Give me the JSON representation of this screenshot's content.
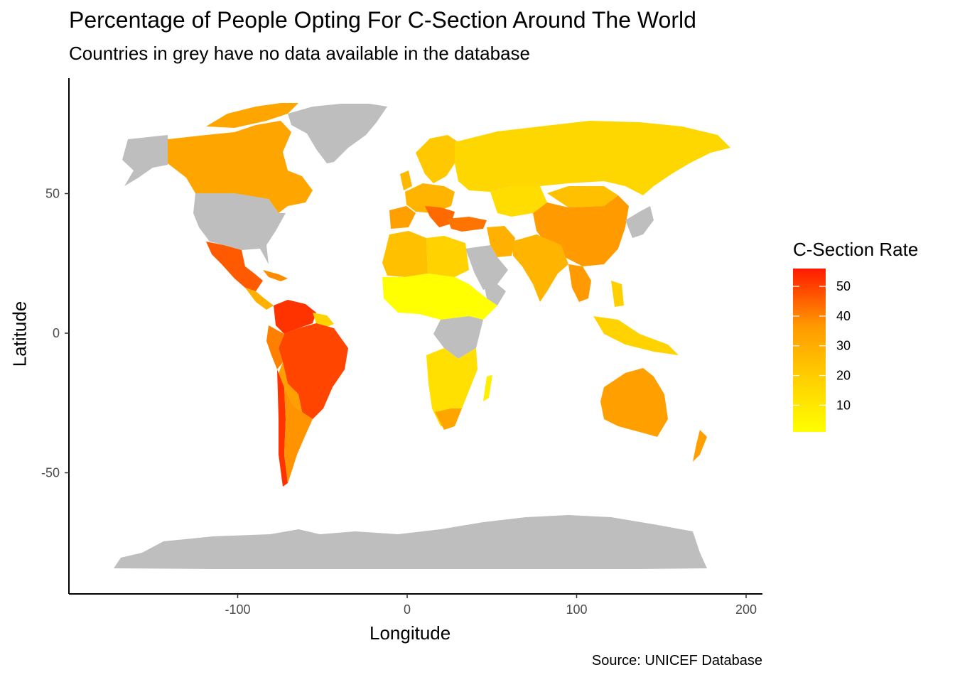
{
  "title": "Percentage of People Opting For C-Section Around The World",
  "subtitle": "Countries in grey have no data available in the database",
  "caption": "Source: UNICEF Database",
  "colors": {
    "no_data": "#bebebe",
    "scale_low": "#ffff00",
    "scale_high": "#ff1a00",
    "axis": "#000000"
  },
  "chart_data": {
    "type": "choropleth",
    "xlabel": "Longitude",
    "ylabel": "Latitude",
    "xlim": [
      -200,
      200
    ],
    "ylim": [
      -90,
      85
    ],
    "xticks": [
      "-100",
      "0",
      "100",
      "200"
    ],
    "yticks": [
      "50",
      "0",
      "-50"
    ],
    "legend": {
      "title": "C-Section Rate",
      "breaks": [
        "50",
        "40",
        "30",
        "20",
        "10"
      ],
      "range": [
        1,
        56
      ],
      "placement": "right"
    },
    "regions": [
      {
        "name": "Canada",
        "value": 26
      },
      {
        "name": "Mexico",
        "value": 45
      },
      {
        "name": "Brazil",
        "value": 55
      },
      {
        "name": "Venezuela",
        "value": 52
      },
      {
        "name": "Colombia",
        "value": 46
      },
      {
        "name": "Peru",
        "value": 35
      },
      {
        "name": "Bolivia",
        "value": 27
      },
      {
        "name": "Chile",
        "value": 50
      },
      {
        "name": "Argentina",
        "value": 29
      },
      {
        "name": "Russia",
        "value": 21
      },
      {
        "name": "Kazakhstan",
        "value": 15
      },
      {
        "name": "China",
        "value": 35
      },
      {
        "name": "India",
        "value": 18
      },
      {
        "name": "Turkey",
        "value": 48
      },
      {
        "name": "Australia",
        "value": 32
      },
      {
        "name": "Nigeria",
        "value": 3
      },
      {
        "name": "Niger",
        "value": 1
      }
    ]
  }
}
